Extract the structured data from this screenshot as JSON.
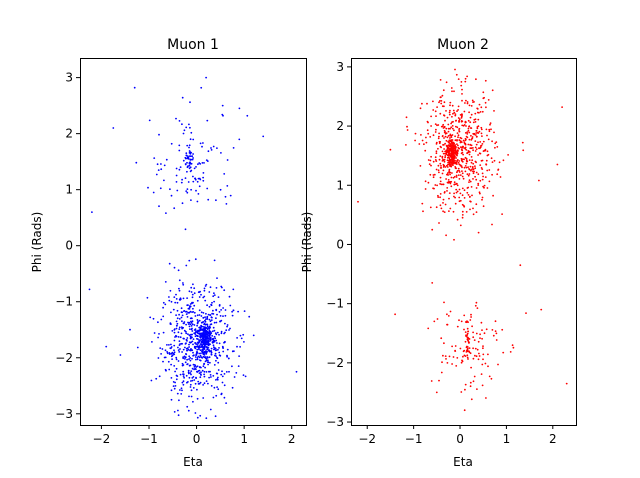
{
  "chart_data": [
    {
      "type": "scatter",
      "title": "Muon 1",
      "xlabel": "Eta",
      "ylabel": "Phi (Rads)",
      "xlim": [
        -2.45,
        2.3
      ],
      "ylim": [
        -3.2,
        3.35
      ],
      "xticks": [
        -2,
        -1,
        0,
        1,
        2
      ],
      "yticks": [
        -3,
        -2,
        -1,
        0,
        1,
        2,
        3
      ],
      "grid": false,
      "color": "#0000ff",
      "clusters": [
        {
          "cx": 0.0,
          "cy": -1.75,
          "sx": 0.38,
          "sy": 0.5,
          "n": 700
        },
        {
          "cx": 0.18,
          "cy": -1.65,
          "sx": 0.07,
          "sy": 0.14,
          "n": 220
        },
        {
          "cx": -0.05,
          "cy": 1.45,
          "sx": 0.45,
          "sy": 0.5,
          "n": 110
        },
        {
          "cx": -0.15,
          "cy": 1.5,
          "sx": 0.05,
          "sy": 0.12,
          "n": 45
        }
      ],
      "outliers": [
        {
          "x": -1.3,
          "y": 2.82
        },
        {
          "x": -1.75,
          "y": 2.1
        },
        {
          "x": -2.2,
          "y": 0.6
        },
        {
          "x": -2.25,
          "y": -0.78
        },
        {
          "x": -1.9,
          "y": -1.8
        },
        {
          "x": -1.6,
          "y": -1.95
        },
        {
          "x": 1.4,
          "y": 1.95
        },
        {
          "x": 0.9,
          "y": 2.45
        },
        {
          "x": 2.1,
          "y": -2.25
        },
        {
          "x": 0.2,
          "y": 3.0
        },
        {
          "x": 0.55,
          "y": 2.5
        },
        {
          "x": -0.9,
          "y": 0.95
        },
        {
          "x": 1.2,
          "y": -1.6
        },
        {
          "x": -1.4,
          "y": -1.5
        }
      ]
    },
    {
      "type": "scatter",
      "title": "Muon 2",
      "xlabel": "Eta",
      "ylabel": "Phi (Rads)",
      "xlim": [
        -2.35,
        2.5
      ],
      "ylim": [
        -3.05,
        3.15
      ],
      "xticks": [
        -2,
        -1,
        0,
        1,
        2
      ],
      "yticks": [
        -3,
        -2,
        -1,
        0,
        1,
        2,
        3
      ],
      "grid": false,
      "color": "#ff0000",
      "clusters": [
        {
          "cx": 0.0,
          "cy": 1.55,
          "sx": 0.38,
          "sy": 0.5,
          "n": 650
        },
        {
          "cx": -0.18,
          "cy": 1.55,
          "sx": 0.06,
          "sy": 0.12,
          "n": 200
        },
        {
          "cx": 0.1,
          "cy": -1.7,
          "sx": 0.4,
          "sy": 0.45,
          "n": 110
        },
        {
          "cx": 0.15,
          "cy": -1.65,
          "sx": 0.04,
          "sy": 0.15,
          "n": 35
        }
      ],
      "outliers": [
        {
          "x": -2.2,
          "y": 0.72
        },
        {
          "x": -1.4,
          "y": -1.18
        },
        {
          "x": 2.2,
          "y": 2.32
        },
        {
          "x": 2.3,
          "y": -2.35
        },
        {
          "x": 1.3,
          "y": -0.35
        },
        {
          "x": 1.7,
          "y": 1.08
        },
        {
          "x": 1.75,
          "y": -1.1
        },
        {
          "x": -0.6,
          "y": -0.65
        },
        {
          "x": 0.1,
          "y": -2.8
        },
        {
          "x": -1.5,
          "y": 1.6
        },
        {
          "x": -0.6,
          "y": 0.25
        },
        {
          "x": 2.1,
          "y": 1.35
        },
        {
          "x": 0.4,
          "y": 0.2
        },
        {
          "x": -0.5,
          "y": -2.5
        }
      ]
    }
  ]
}
